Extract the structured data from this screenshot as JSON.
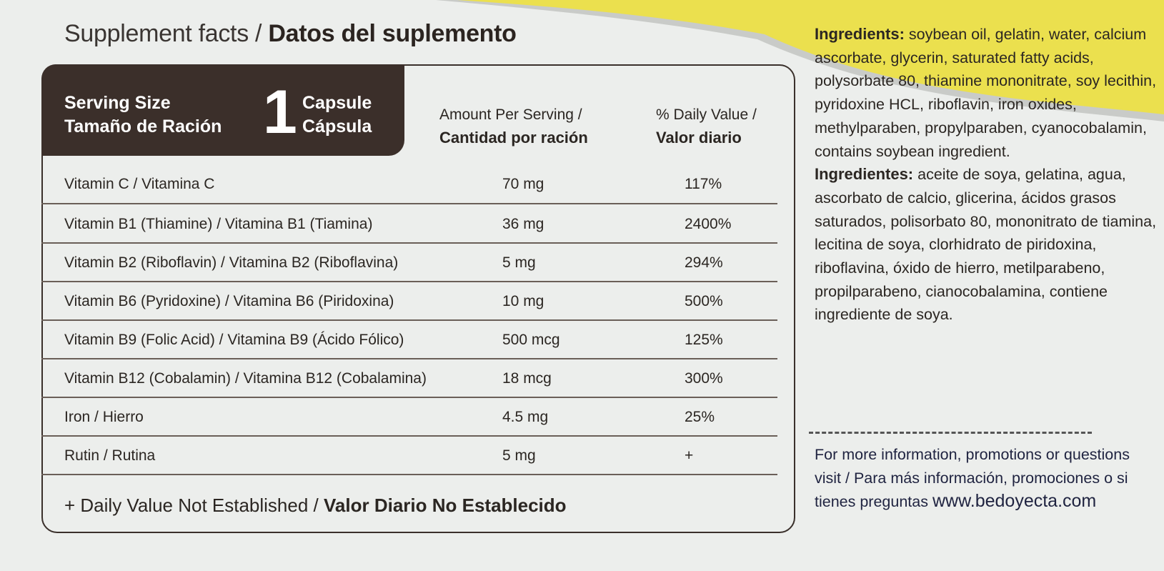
{
  "title": {
    "en": "Supplement facts /",
    "es": "Datos del suplemento"
  },
  "serving": {
    "label_en": "Serving Size",
    "label_es": "Tamaño de Ración",
    "count": "1",
    "unit_en": "Capsule",
    "unit_es": "Cápsula"
  },
  "columns": {
    "amount_en": "Amount Per Serving /",
    "amount_es": "Cantidad por ración",
    "dv_en": "% Daily Value /",
    "dv_es": "Valor diario"
  },
  "rows": [
    {
      "name": "Vitamin C / Vitamina C",
      "amount": "70 mg",
      "dv": "117%"
    },
    {
      "name": "Vitamin B1 (Thiamine) / Vitamina B1 (Tiamina)",
      "amount": "36 mg",
      "dv": "2400%"
    },
    {
      "name": "Vitamin B2 (Riboflavin) / Vitamina B2 (Riboflavina)",
      "amount": "5 mg",
      "dv": "294%"
    },
    {
      "name": "Vitamin B6 (Pyridoxine) / Vitamina B6 (Piridoxina)",
      "amount": "10 mg",
      "dv": "500%"
    },
    {
      "name": "Vitamin B9 (Folic Acid) / Vitamina B9 (Ácido Fólico)",
      "amount": "500 mcg",
      "dv": "125%"
    },
    {
      "name": "Vitamin B12 (Cobalamin) / Vitamina B12 (Cobalamina)",
      "amount": "18 mcg",
      "dv": "300%"
    },
    {
      "name": "Iron / Hierro",
      "amount": "4.5 mg",
      "dv": "25%"
    },
    {
      "name": "Rutin / Rutina",
      "amount": "5 mg",
      "dv": "+"
    }
  ],
  "footnote": {
    "en": "+ Daily Value Not Established /",
    "es": "Valor Diario No Establecido"
  },
  "ingredients": {
    "en_label": "Ingredients:",
    "en_text": "soybean oil, gelatin, water, calcium ascorbate, glycerin, saturated fatty acids, polysorbate 80, thiamine mononitrate, soy lecithin, pyridoxine HCL, riboflavin, iron oxides, methylparaben, propylparaben, cyanocobalamin, contains soybean ingredient.",
    "es_label": "Ingredientes:",
    "es_text": "aceite de soya, gelatina, agua, ascorbato de calcio, glicerina, ácidos grasos saturados, polisorbato 80, mononitrato de tiamina, lecitina de soya, clorhidrato de piridoxina, riboflavina, óxido de hierro, metilparabeno, propilparabeno, cianocobalamina, contiene ingrediente de soya."
  },
  "info": {
    "text": "For more information, promotions or questions visit / Para más información, promociones o si tienes preguntas",
    "url": "www.bedoyecta.com"
  },
  "colors": {
    "header_bg": "#3b2f2a",
    "accent_yellow": "#ece04a",
    "background": "#eceeec"
  }
}
